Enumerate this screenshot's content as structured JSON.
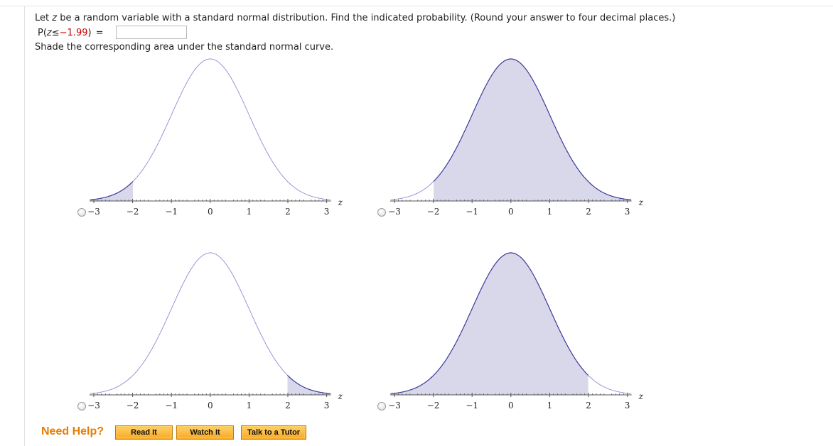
{
  "question": {
    "part1": "Let ",
    "var": "z",
    "part2": " be a random variable with a standard normal distribution. Find the indicated probability. (Round your answer to four decimal places.)"
  },
  "probability": {
    "prefix": "P(",
    "var": "z",
    "relation": " ≤ ",
    "value": "−1.99",
    "suffix": ") ",
    "equals": "=",
    "answer_value": "",
    "answer_placeholder": ""
  },
  "shade_instruction": "Shade the corresponding area under the standard normal curve.",
  "axis": {
    "ticks": [
      "−3",
      "−2",
      "−1",
      "0",
      "1",
      "2",
      "3"
    ],
    "label": "z"
  },
  "options": [
    {
      "id": "a",
      "shade": "left",
      "cutoff": -1.99,
      "selected": false
    },
    {
      "id": "b",
      "shade": "right",
      "cutoff": -1.99,
      "selected": false
    },
    {
      "id": "c",
      "shade": "right",
      "cutoff": 1.99,
      "selected": false
    },
    {
      "id": "d",
      "shade": "left",
      "cutoff": 1.99,
      "selected": false
    }
  ],
  "colors": {
    "shade_fill": "#d8d8ea",
    "shade_curve": "#3a3a9c",
    "plain_curve": "#8c8cd4",
    "axis": "#555555"
  },
  "help": {
    "title": "Need Help?",
    "buttons": [
      "Read It",
      "Watch It",
      "Talk to a Tutor"
    ]
  }
}
